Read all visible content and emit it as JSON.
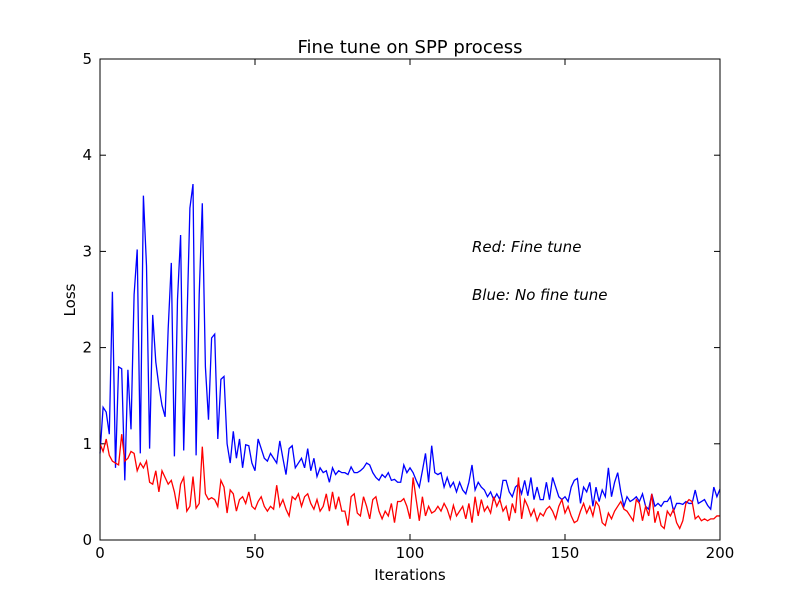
{
  "chart_data": {
    "type": "line",
    "title": "Fine tune on SPP process",
    "xlabel": "Iterations",
    "ylabel": "Loss",
    "x": [
      0,
      1,
      2,
      3,
      4,
      5,
      6,
      7,
      8,
      9,
      10,
      11,
      12,
      13,
      14,
      15,
      16,
      17,
      18,
      19,
      20,
      21,
      22,
      23,
      24,
      25,
      26,
      27,
      28,
      29,
      30,
      31,
      32,
      33,
      34,
      35,
      36,
      37,
      38,
      39,
      40,
      41,
      42,
      43,
      44,
      45,
      46,
      47,
      48,
      49,
      50,
      51,
      52,
      53,
      54,
      55,
      56,
      57,
      58,
      59,
      60,
      61,
      62,
      63,
      64,
      65,
      66,
      67,
      68,
      69,
      70,
      71,
      72,
      73,
      74,
      75,
      76,
      77,
      78,
      79,
      80,
      81,
      82,
      83,
      84,
      85,
      86,
      87,
      88,
      89,
      90,
      91,
      92,
      93,
      94,
      95,
      96,
      97,
      98,
      99,
      100,
      101,
      102,
      103,
      104,
      105,
      106,
      107,
      108,
      109,
      110,
      111,
      112,
      113,
      114,
      115,
      116,
      117,
      118,
      119,
      120,
      121,
      122,
      123,
      124,
      125,
      126,
      127,
      128,
      129,
      130,
      131,
      132,
      133,
      134,
      135,
      136,
      137,
      138,
      139,
      140,
      141,
      142,
      143,
      144,
      145,
      146,
      147,
      148,
      149,
      150,
      151,
      152,
      153,
      154,
      155,
      156,
      157,
      158,
      159,
      160,
      161,
      162,
      163,
      164,
      165,
      166,
      167,
      168,
      169,
      170,
      171,
      172,
      173,
      174,
      175,
      176,
      177,
      178,
      179,
      180,
      181,
      182,
      183,
      184,
      185,
      186,
      187,
      188,
      189,
      190,
      191,
      192,
      193,
      194,
      195,
      196,
      197,
      198,
      199,
      200
    ],
    "series": [
      {
        "color": "#0000ff",
        "values": [
          0.9,
          1.38,
          1.33,
          1.1,
          2.58,
          0.75,
          1.8,
          1.78,
          0.62,
          1.77,
          1.15,
          2.55,
          3.02,
          0.9,
          3.58,
          2.85,
          0.95,
          2.34,
          1.85,
          1.6,
          1.4,
          1.28,
          2.2,
          2.88,
          0.87,
          2.5,
          3.17,
          0.93,
          2.2,
          3.45,
          3.7,
          0.88,
          2.55,
          3.5,
          1.8,
          1.25,
          2.1,
          2.14,
          1.05,
          1.67,
          1.7,
          1.0,
          0.8,
          1.13,
          0.85,
          1.05,
          0.75,
          0.99,
          0.98,
          0.8,
          0.72,
          1.05,
          0.95,
          0.85,
          0.82,
          0.9,
          0.85,
          0.8,
          1.03,
          0.85,
          0.68,
          0.95,
          0.98,
          0.75,
          0.8,
          0.85,
          0.75,
          0.95,
          0.72,
          0.85,
          0.66,
          0.75,
          0.7,
          0.72,
          0.6,
          0.75,
          0.68,
          0.72,
          0.7,
          0.7,
          0.68,
          0.76,
          0.7,
          0.7,
          0.72,
          0.75,
          0.8,
          0.78,
          0.7,
          0.65,
          0.62,
          0.68,
          0.65,
          0.7,
          0.62,
          0.63,
          0.6,
          0.6,
          0.78,
          0.7,
          0.75,
          0.7,
          0.62,
          0.55,
          0.72,
          0.9,
          0.6,
          0.98,
          0.7,
          0.68,
          0.7,
          0.55,
          0.65,
          0.55,
          0.6,
          0.5,
          0.6,
          0.52,
          0.48,
          0.6,
          0.78,
          0.52,
          0.6,
          0.55,
          0.52,
          0.45,
          0.5,
          0.42,
          0.48,
          0.42,
          0.62,
          0.62,
          0.5,
          0.45,
          0.55,
          0.58,
          0.48,
          0.62,
          0.46,
          0.65,
          0.42,
          0.55,
          0.42,
          0.42,
          0.6,
          0.42,
          0.65,
          0.55,
          0.45,
          0.42,
          0.45,
          0.4,
          0.55,
          0.62,
          0.64,
          0.38,
          0.55,
          0.5,
          0.6,
          0.35,
          0.55,
          0.4,
          0.52,
          0.45,
          0.75,
          0.45,
          0.6,
          0.7,
          0.5,
          0.35,
          0.45,
          0.4,
          0.42,
          0.45,
          0.4,
          0.48,
          0.35,
          0.32,
          0.48,
          0.35,
          0.38,
          0.35,
          0.4,
          0.4,
          0.45,
          0.3,
          0.38,
          0.38,
          0.37,
          0.4,
          0.38,
          0.38,
          0.52,
          0.38,
          0.4,
          0.42,
          0.36,
          0.32,
          0.55,
          0.45,
          0.53
        ]
      },
      {
        "color": "#ff0000",
        "values": [
          1.0,
          0.92,
          1.05,
          0.88,
          0.82,
          0.8,
          0.78,
          1.1,
          0.82,
          0.85,
          0.92,
          0.9,
          0.72,
          0.8,
          0.75,
          0.82,
          0.6,
          0.58,
          0.72,
          0.5,
          0.72,
          0.65,
          0.58,
          0.62,
          0.5,
          0.32,
          0.58,
          0.65,
          0.3,
          0.35,
          0.66,
          0.33,
          0.38,
          0.97,
          0.48,
          0.42,
          0.44,
          0.42,
          0.35,
          0.62,
          0.55,
          0.28,
          0.52,
          0.48,
          0.3,
          0.42,
          0.45,
          0.38,
          0.5,
          0.35,
          0.32,
          0.4,
          0.45,
          0.35,
          0.3,
          0.35,
          0.32,
          0.57,
          0.35,
          0.42,
          0.32,
          0.25,
          0.45,
          0.42,
          0.48,
          0.35,
          0.45,
          0.48,
          0.38,
          0.32,
          0.42,
          0.3,
          0.35,
          0.48,
          0.3,
          0.5,
          0.32,
          0.45,
          0.3,
          0.3,
          0.15,
          0.45,
          0.48,
          0.28,
          0.25,
          0.45,
          0.35,
          0.22,
          0.42,
          0.45,
          0.3,
          0.22,
          0.3,
          0.25,
          0.38,
          0.18,
          0.4,
          0.4,
          0.43,
          0.35,
          0.22,
          0.65,
          0.42,
          0.2,
          0.45,
          0.25,
          0.35,
          0.28,
          0.3,
          0.35,
          0.3,
          0.38,
          0.32,
          0.22,
          0.36,
          0.25,
          0.3,
          0.35,
          0.22,
          0.38,
          0.18,
          0.45,
          0.25,
          0.42,
          0.3,
          0.35,
          0.28,
          0.45,
          0.35,
          0.42,
          0.3,
          0.35,
          0.2,
          0.38,
          0.28,
          0.65,
          0.22,
          0.42,
          0.35,
          0.25,
          0.32,
          0.2,
          0.28,
          0.25,
          0.32,
          0.35,
          0.3,
          0.22,
          0.35,
          0.42,
          0.28,
          0.35,
          0.25,
          0.18,
          0.2,
          0.3,
          0.38,
          0.28,
          0.35,
          0.25,
          0.4,
          0.35,
          0.18,
          0.15,
          0.28,
          0.22,
          0.3,
          0.35,
          0.4,
          0.32,
          0.3,
          0.25,
          0.2,
          0.42,
          0.38,
          0.2,
          0.35,
          0.25,
          0.48,
          0.18,
          0.3,
          0.15,
          0.12,
          0.3,
          0.25,
          0.32,
          0.18,
          0.12,
          0.2,
          0.38,
          0.42,
          0.4,
          0.22,
          0.25,
          0.2,
          0.22,
          0.2,
          0.22,
          0.22,
          0.25,
          0.25
        ]
      }
    ],
    "annotations": [
      {
        "text": "Red: Fine tune",
        "color": "#ff0000"
      },
      {
        "text": "Blue: No fine tune",
        "color": "#0000ff"
      }
    ],
    "xlim": [
      0,
      200
    ],
    "xticks": [
      0,
      50,
      100,
      150,
      200
    ],
    "ylim": [
      0,
      5
    ],
    "yticks": [
      0,
      1,
      2,
      3,
      4,
      5
    ],
    "grid": false
  }
}
